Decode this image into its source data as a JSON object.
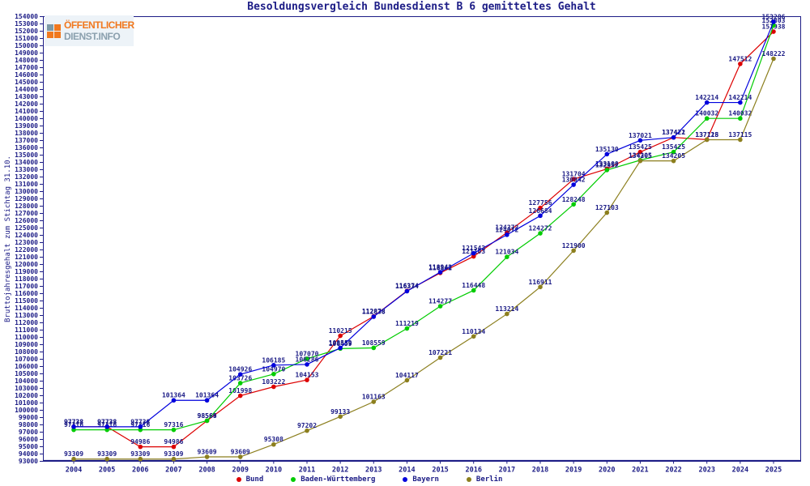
{
  "logo": {
    "line1": "ÖFFENTLICHER",
    "line2": "DIENST.INFO"
  },
  "chart_data": {
    "type": "line",
    "title": "Besoldungsvergleich Bundesdienst B 6 gemitteltes Gehalt",
    "ylabel": "Bruttojahresgehalt zum Stichtag 31.10.",
    "x": [
      "2004",
      "2005",
      "2006",
      "2007",
      "2008",
      "2009",
      "2010",
      "2011",
      "2012",
      "2013",
      "2014",
      "2015",
      "2016",
      "2017",
      "2018",
      "2019",
      "2020",
      "2021",
      "2022",
      "2023",
      "2024",
      "2025"
    ],
    "ylim": [
      93000,
      154000
    ],
    "ytick_step": 1000,
    "grid": false,
    "legend_position": "bottom",
    "point_labels": true,
    "text_color": "#1c1c86",
    "series": [
      {
        "name": "Bund",
        "color": "#dd0000",
        "values": [
          97738,
          97738,
          94986,
          94986,
          98564,
          101998,
          103222,
          104153,
          110215,
          112878,
          116374,
          118842,
          121103,
          124372,
          127756,
          131704,
          133100,
          135425,
          137421,
          137128,
          147512,
          151938
        ]
      },
      {
        "name": "Baden-Württemberg",
        "color": "#00cc00",
        "values": [
          97316,
          97316,
          97316,
          97316,
          98569,
          103726,
          104970,
          107070,
          108459,
          108559,
          111219,
          114277,
          116448,
          121034,
          124272,
          128248,
          132952,
          134305,
          135425,
          140032,
          140032,
          152803
        ]
      },
      {
        "name": "Bayern",
        "color": "#0000dd",
        "values": [
          97738,
          97738,
          97738,
          101364,
          101364,
          104926,
          106185,
          106286,
          108559,
          112838,
          116334,
          118942,
          121543,
          124072,
          126684,
          130942,
          135130,
          137021,
          137422,
          142214,
          142214,
          153286
        ]
      },
      {
        "name": "Berlin",
        "color": "#8c7f1e",
        "values": [
          93309,
          93309,
          93309,
          93309,
          93609,
          93609,
          95308,
          97202,
          99133,
          101163,
          104117,
          107221,
          110134,
          113214,
          116911,
          121900,
          127103,
          134205,
          134205,
          137115,
          137115,
          148222
        ]
      }
    ]
  }
}
